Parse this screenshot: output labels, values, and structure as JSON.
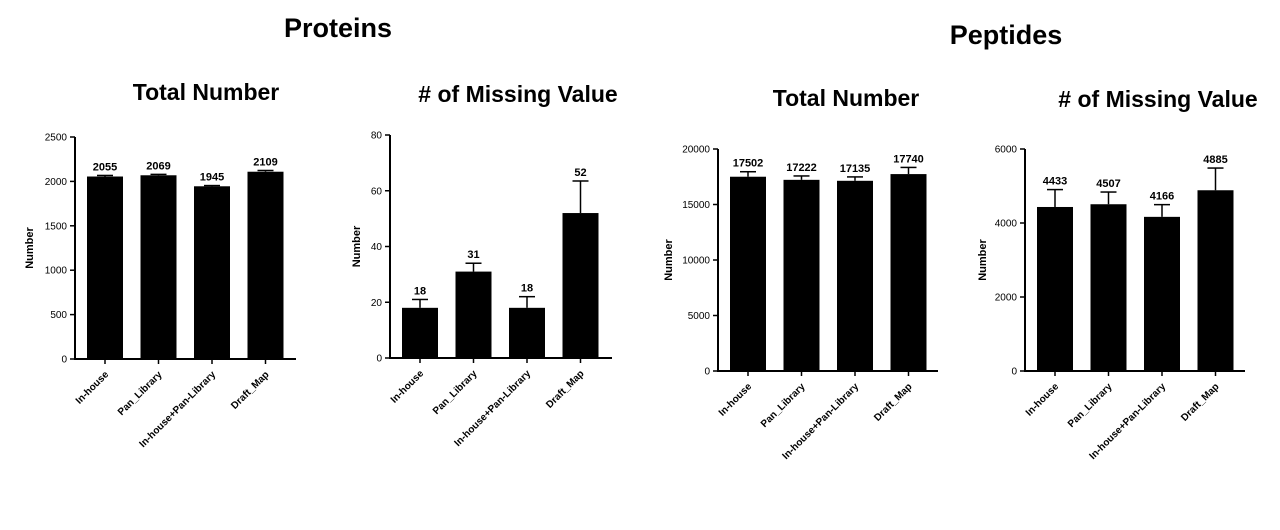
{
  "groups": {
    "proteins": "Proteins",
    "peptides": "Peptides"
  },
  "chart_data": [
    {
      "type": "bar",
      "group": "Proteins",
      "title": "Total Number",
      "ylabel": "Number",
      "xlabel": "",
      "ylim": [
        0,
        2500
      ],
      "yticks": [
        0,
        500,
        1000,
        1500,
        2000,
        2500
      ],
      "categories": [
        "In-house",
        "Pan_Library",
        "In-house+Pan-Library",
        "Draft_Map"
      ],
      "values": [
        2055,
        2069,
        1945,
        2109
      ],
      "data_labels": [
        "2055",
        "2069",
        "1945",
        "2109"
      ],
      "error": [
        12,
        10,
        8,
        14
      ],
      "grid": false,
      "bar_color": "#000000"
    },
    {
      "type": "bar",
      "group": "Proteins",
      "title": "# of Missing Value",
      "ylabel": "Number",
      "xlabel": "",
      "ylim": [
        0,
        80
      ],
      "yticks": [
        0,
        20,
        40,
        60,
        80
      ],
      "categories": [
        "In-house",
        "Pan_Library",
        "In-house+Pan-Library",
        "Draft_Map"
      ],
      "values": [
        18,
        31,
        18,
        52
      ],
      "data_labels": [
        "18",
        "31",
        "18",
        "52"
      ],
      "error": [
        3,
        3,
        4,
        11.5
      ],
      "grid": false,
      "bar_color": "#000000"
    },
    {
      "type": "bar",
      "group": "Peptides",
      "title": "Total Number",
      "ylabel": "Number",
      "xlabel": "",
      "ylim": [
        0,
        20000
      ],
      "yticks": [
        0,
        5000,
        10000,
        15000,
        20000
      ],
      "categories": [
        "In-house",
        "Pan_Library",
        "In-house+Pan-Library",
        "Draft_Map"
      ],
      "values": [
        17502,
        17222,
        17135,
        17740
      ],
      "data_labels": [
        "17502",
        "17222",
        "17135",
        "17740"
      ],
      "error": [
        450,
        350,
        350,
        600
      ],
      "grid": false,
      "bar_color": "#000000"
    },
    {
      "type": "bar",
      "group": "Peptides",
      "title": "# of Missing Value",
      "ylabel": "Number",
      "xlabel": "",
      "ylim": [
        0,
        6000
      ],
      "yticks": [
        0,
        2000,
        4000,
        6000
      ],
      "categories": [
        "In-house",
        "Pan_Library",
        "In-house+Pan-Library",
        "Draft_Map"
      ],
      "values": [
        4433,
        4507,
        4166,
        4885
      ],
      "data_labels": [
        "4433",
        "4507",
        "4166",
        "4885"
      ],
      "error": [
        470,
        330,
        330,
        600
      ],
      "grid": false,
      "bar_color": "#000000"
    }
  ]
}
